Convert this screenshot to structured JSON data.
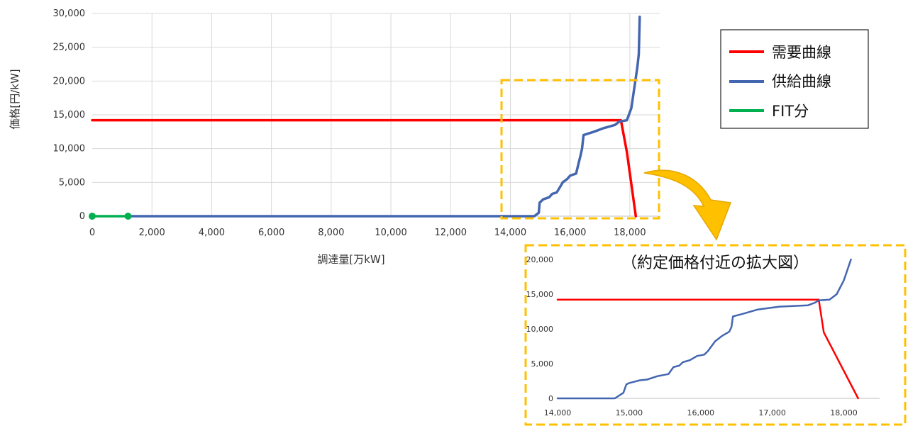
{
  "colors": {
    "demand": "#ff0000",
    "supply": "#4466b0",
    "fit": "#00b050",
    "highlight_box": "#ffc000",
    "arrow": "#ffc000",
    "grid": "#d9d9d9",
    "axis": "#bfbfbf"
  },
  "legend": {
    "items": [
      {
        "key": "demand",
        "label": "需要曲線"
      },
      {
        "key": "supply",
        "label": "供給曲線"
      },
      {
        "key": "fit",
        "label": "FIT分"
      }
    ]
  },
  "inset": {
    "title": "（約定価格付近の拡大図）"
  },
  "chart_data": [
    {
      "type": "line",
      "title": "",
      "xlabel": "調達量[万kW]",
      "ylabel": "価格[円/kW]",
      "xlim": [
        0,
        19000
      ],
      "ylim": [
        0,
        30000
      ],
      "x_ticks": [
        "0",
        "2,000",
        "4,000",
        "6,000",
        "8,000",
        "10,000",
        "12,000",
        "14,000",
        "16,000",
        "18,000"
      ],
      "x_tick_values": [
        0,
        2000,
        4000,
        6000,
        8000,
        10000,
        12000,
        14000,
        16000,
        18000
      ],
      "y_ticks": [
        "0",
        "5,000",
        "10,000",
        "15,000",
        "20,000",
        "25,000",
        "30,000"
      ],
      "y_tick_values": [
        0,
        5000,
        10000,
        15000,
        20000,
        25000,
        30000
      ],
      "grid": "vertical",
      "legend": "top-right",
      "series": [
        {
          "name": "需要曲線",
          "x": [
            0,
            17700,
            17900,
            18200
          ],
          "y": [
            14200,
            14200,
            9500,
            0
          ]
        },
        {
          "name": "供給曲線",
          "x": [
            1200,
            4000,
            10000,
            14800,
            14950,
            14980,
            15100,
            15300,
            15400,
            15550,
            15700,
            15750,
            15900,
            16000,
            16200,
            16350,
            16400,
            16450,
            16800,
            17100,
            17500,
            17650,
            17900,
            18050,
            18150,
            18250,
            18300,
            18330
          ],
          "y": [
            0,
            0,
            0,
            0,
            500,
            2000,
            2500,
            2800,
            3300,
            3500,
            4600,
            5000,
            5500,
            6000,
            6300,
            9000,
            10000,
            12000,
            12500,
            13000,
            13500,
            14000,
            14200,
            16000,
            19000,
            22000,
            24000,
            29500
          ]
        },
        {
          "name": "FIT分",
          "x": [
            0,
            1200
          ],
          "y": [
            0,
            0
          ]
        }
      ]
    },
    {
      "type": "line",
      "title": "（約定価格付近の拡大図）",
      "xlim": [
        14000,
        18500
      ],
      "ylim": [
        0,
        20000
      ],
      "x_ticks": [
        "14,000",
        "15,000",
        "16,000",
        "17,000",
        "18,000"
      ],
      "x_tick_values": [
        14000,
        15000,
        16000,
        17000,
        18000
      ],
      "y_ticks": [
        "0",
        "5,000",
        "10,000",
        "15,000",
        "20,000"
      ],
      "y_tick_values": [
        0,
        5000,
        10000,
        15000,
        20000
      ],
      "grid": "none",
      "series": [
        {
          "name": "需要曲線",
          "x": [
            14000,
            17650,
            17720,
            18200
          ],
          "y": [
            14200,
            14200,
            9500,
            0
          ]
        },
        {
          "name": "供給曲線",
          "x": [
            14000,
            14800,
            14920,
            14960,
            15000,
            15150,
            15250,
            15400,
            15500,
            15550,
            15620,
            15700,
            15750,
            15850,
            15950,
            16050,
            16100,
            16200,
            16300,
            16400,
            16430,
            16450,
            16600,
            16800,
            17100,
            17500,
            17600,
            17650,
            17800,
            17900,
            18000,
            18100
          ],
          "y": [
            0,
            0,
            800,
            2000,
            2200,
            2600,
            2700,
            3200,
            3400,
            3500,
            4500,
            4700,
            5200,
            5500,
            6100,
            6300,
            6800,
            8200,
            9000,
            9600,
            10300,
            11800,
            12200,
            12800,
            13200,
            13400,
            13800,
            14100,
            14200,
            15000,
            17000,
            20000
          ]
        }
      ]
    }
  ]
}
